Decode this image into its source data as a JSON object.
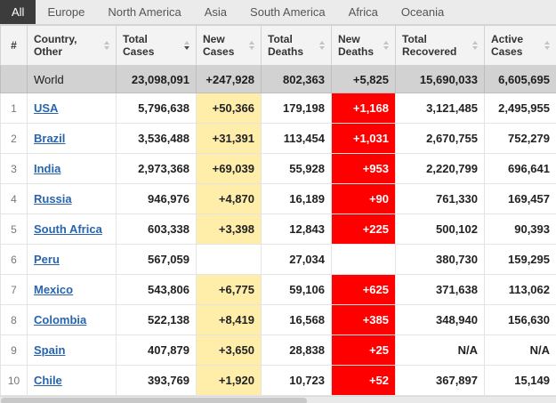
{
  "tabs": [
    {
      "label": "All",
      "active": true
    },
    {
      "label": "Europe",
      "active": false
    },
    {
      "label": "North America",
      "active": false
    },
    {
      "label": "Asia",
      "active": false
    },
    {
      "label": "South America",
      "active": false
    },
    {
      "label": "Africa",
      "active": false
    },
    {
      "label": "Oceania",
      "active": false
    }
  ],
  "table": {
    "columns": [
      {
        "key": "rank",
        "label": "#",
        "sortable": false,
        "sorted": ""
      },
      {
        "key": "country",
        "label": "Country, Other",
        "sortable": true,
        "sorted": ""
      },
      {
        "key": "total-cases",
        "label": "Total Cases",
        "sortable": true,
        "sorted": "desc"
      },
      {
        "key": "new-cases",
        "label": "New Cases",
        "sortable": true,
        "sorted": ""
      },
      {
        "key": "total-deaths",
        "label": "Total Deaths",
        "sortable": true,
        "sorted": ""
      },
      {
        "key": "new-deaths",
        "label": "New Deaths",
        "sortable": true,
        "sorted": ""
      },
      {
        "key": "total-recovered",
        "label": "Total Recovered",
        "sortable": true,
        "sorted": ""
      },
      {
        "key": "active-cases",
        "label": "Active Cases",
        "sortable": true,
        "sorted": ""
      }
    ],
    "world_row": {
      "rank": "",
      "country": "World",
      "total_cases": "23,098,091",
      "new_cases": "+247,928",
      "total_deaths": "802,363",
      "new_deaths": "+5,825",
      "total_recovered": "15,690,033",
      "active_cases": "6,605,695"
    },
    "rows": [
      {
        "rank": "1",
        "country": "USA",
        "total_cases": "5,796,638",
        "new_cases": "+50,366",
        "total_deaths": "179,198",
        "new_deaths": "+1,168",
        "total_recovered": "3,121,485",
        "active_cases": "2,495,955"
      },
      {
        "rank": "2",
        "country": "Brazil",
        "total_cases": "3,536,488",
        "new_cases": "+31,391",
        "total_deaths": "113,454",
        "new_deaths": "+1,031",
        "total_recovered": "2,670,755",
        "active_cases": "752,279"
      },
      {
        "rank": "3",
        "country": "India",
        "total_cases": "2,973,368",
        "new_cases": "+69,039",
        "total_deaths": "55,928",
        "new_deaths": "+953",
        "total_recovered": "2,220,799",
        "active_cases": "696,641"
      },
      {
        "rank": "4",
        "country": "Russia",
        "total_cases": "946,976",
        "new_cases": "+4,870",
        "total_deaths": "16,189",
        "new_deaths": "+90",
        "total_recovered": "761,330",
        "active_cases": "169,457"
      },
      {
        "rank": "5",
        "country": "South Africa",
        "total_cases": "603,338",
        "new_cases": "+3,398",
        "total_deaths": "12,843",
        "new_deaths": "+225",
        "total_recovered": "500,102",
        "active_cases": "90,393"
      },
      {
        "rank": "6",
        "country": "Peru",
        "total_cases": "567,059",
        "new_cases": "",
        "total_deaths": "27,034",
        "new_deaths": "",
        "total_recovered": "380,730",
        "active_cases": "159,295"
      },
      {
        "rank": "7",
        "country": "Mexico",
        "total_cases": "543,806",
        "new_cases": "+6,775",
        "total_deaths": "59,106",
        "new_deaths": "+625",
        "total_recovered": "371,638",
        "active_cases": "113,062"
      },
      {
        "rank": "8",
        "country": "Colombia",
        "total_cases": "522,138",
        "new_cases": "+8,419",
        "total_deaths": "16,568",
        "new_deaths": "+385",
        "total_recovered": "348,940",
        "active_cases": "156,630"
      },
      {
        "rank": "9",
        "country": "Spain",
        "total_cases": "407,879",
        "new_cases": "+3,650",
        "total_deaths": "28,838",
        "new_deaths": "+25",
        "total_recovered": "N/A",
        "active_cases": "N/A"
      },
      {
        "rank": "10",
        "country": "Chile",
        "total_cases": "393,769",
        "new_cases": "+1,920",
        "total_deaths": "10,723",
        "new_deaths": "+52",
        "total_recovered": "367,897",
        "active_cases": "15,149"
      }
    ]
  },
  "colors": {
    "new_cases_bg": "#FFEEAA",
    "new_deaths_bg": "#FF0000",
    "new_deaths_text": "#FFFFFF",
    "link_color": "#2864AE",
    "active_tab_bg": "#3C3C3C",
    "world_row_bg": "#D2D2D2",
    "header_bg": "#F3F3F3",
    "tabbar_bg": "#EBEBEB"
  }
}
